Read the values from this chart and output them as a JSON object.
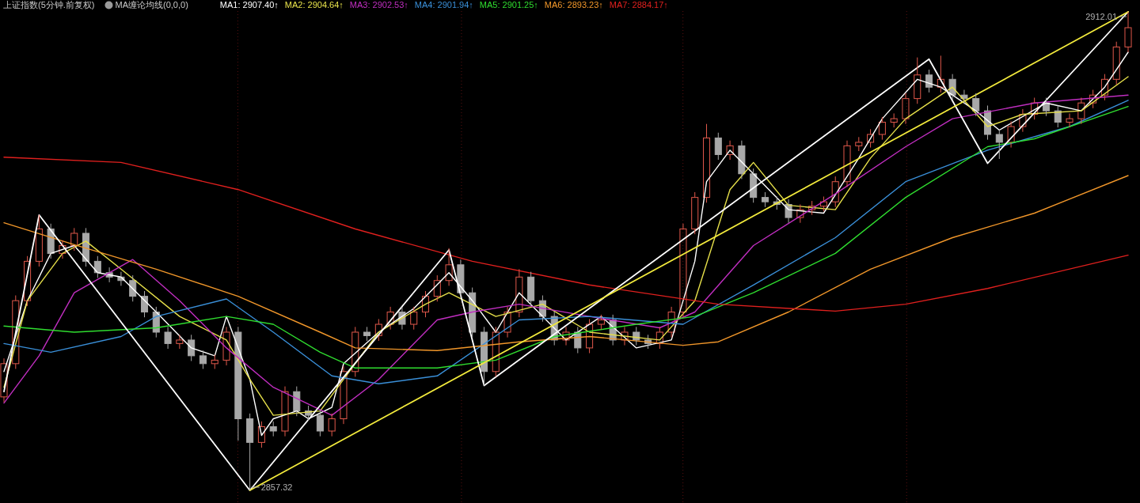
{
  "chart_data": {
    "type": "candlestick",
    "title": "上证指数(5分钟.前复权)",
    "subtitle": "MA缠论均线(0,0,0)",
    "tick_labels": false,
    "grid": "x",
    "categories": [
      null,
      null,
      null,
      null,
      null,
      null,
      null,
      null,
      null,
      null,
      null,
      null,
      null,
      null,
      null,
      null,
      null,
      null,
      null,
      null,
      null,
      null,
      null,
      null,
      null,
      null,
      null,
      null,
      null,
      null,
      null,
      null,
      null,
      null,
      null,
      null,
      null,
      null,
      null,
      null,
      null,
      null,
      null,
      null,
      null,
      null,
      null,
      null,
      null,
      null,
      null,
      null,
      null,
      null,
      null,
      null,
      null,
      null,
      null,
      null,
      null,
      null,
      null,
      null,
      null,
      null,
      null,
      null,
      null,
      null,
      null,
      null,
      null,
      null,
      null,
      null,
      null,
      null,
      null,
      null,
      null,
      null,
      null,
      null,
      null,
      null,
      null,
      null,
      null,
      null,
      null,
      null,
      null,
      null,
      null,
      null,
      null
    ],
    "colors": [
      "#e0584b",
      "#e0584b",
      "#e0584b",
      "#e0584b",
      "#a8a8a8",
      "#e0584b",
      "#e0584b",
      "#a8a8a8",
      "#a8a8a8",
      "#a8a8a8",
      "#a8a8a8",
      "#a8a8a8",
      "#a8a8a8",
      "#a8a8a8",
      "#a8a8a8",
      "#e0584b",
      "#a8a8a8",
      "#a8a8a8",
      "#e0584b",
      "#e0584b",
      "#a8a8a8",
      "#a8a8a8",
      "#e0584b",
      "#a8a8a8",
      "#e0584b",
      "#a8a8a8",
      "#a8a8a8",
      "#a8a8a8",
      "#e0584b",
      "#e0584b",
      "#e0584b",
      "#a8a8a8",
      "#e0584b",
      "#e0584b",
      "#a8a8a8",
      "#e0584b",
      "#e0584b",
      "#e0584b",
      "#e0584b",
      "#a8a8a8",
      "#a8a8a8",
      "#a8a8a8",
      "#e0584b",
      "#e0584b",
      "#e0584b",
      "#a8a8a8",
      "#a8a8a8",
      "#a8a8a8",
      "#e0584b",
      "#a8a8a8",
      "#e0584b",
      "#e0584b",
      "#a8a8a8",
      "#e0584b",
      "#a8a8a8",
      "#a8a8a8",
      "#e0584b",
      "#e0584b",
      "#e0584b",
      "#e0584b",
      "#e0584b",
      "#a8a8a8",
      "#e0584b",
      "#a8a8a8",
      "#a8a8a8",
      "#a8a8a8",
      "#a8a8a8",
      "#a8a8a8",
      "#e0584b",
      "#e0584b",
      "#e0584b",
      "#e0584b",
      "#e0584b",
      "#e0584b",
      "#e0584b",
      "#e0584b",
      "#e0584b",
      "#e0584b",
      "#e0584b",
      "#a8a8a8",
      "#e0584b",
      "#a8a8a8",
      "#a8a8a8",
      "#a8a8a8",
      "#a8a8a8",
      "#a8a8a8",
      "#e0584b",
      "#e0584b",
      "#e0584b",
      "#a8a8a8",
      "#a8a8a8",
      "#e0584b",
      "#e0584b",
      "#e0584b",
      "#e0584b",
      "#e0584b",
      "#e0584b"
    ],
    "ohlc": [
      [
        2868.0,
        2872.4,
        2867.4,
        2871.8
      ],
      [
        2871.8,
        2879.6,
        2871.2,
        2879.0
      ],
      [
        2879.0,
        2884.1,
        2878.4,
        2883.5
      ],
      [
        2883.5,
        2888.8,
        2882.9,
        2887.2
      ],
      [
        2887.2,
        2887.8,
        2883.8,
        2884.4
      ],
      [
        2884.4,
        2885.9,
        2883.8,
        2885.3
      ],
      [
        2885.3,
        2887.3,
        2884.7,
        2886.7
      ],
      [
        2886.7,
        2887.3,
        2882.9,
        2883.5
      ],
      [
        2883.5,
        2884.1,
        2881.6,
        2882.2
      ],
      [
        2882.2,
        2882.8,
        2881.1,
        2881.7
      ],
      [
        2881.7,
        2882.3,
        2880.7,
        2881.3
      ],
      [
        2881.3,
        2881.9,
        2878.9,
        2879.5
      ],
      [
        2879.5,
        2880.1,
        2877.1,
        2877.7
      ],
      [
        2877.7,
        2878.3,
        2874.8,
        2875.4
      ],
      [
        2875.4,
        2876.0,
        2873.5,
        2874.1
      ],
      [
        2874.1,
        2875.1,
        2873.5,
        2874.5
      ],
      [
        2874.5,
        2875.1,
        2872.1,
        2872.7
      ],
      [
        2872.7,
        2873.3,
        2871.2,
        2871.8
      ],
      [
        2871.8,
        2872.8,
        2871.2,
        2872.2
      ],
      [
        2872.2,
        2876.0,
        2871.6,
        2875.4
      ],
      [
        2875.4,
        2876.0,
        2863.0,
        2865.5
      ],
      [
        2865.5,
        2866.1,
        2857.32,
        2862.8
      ],
      [
        2862.8,
        2865.2,
        2862.2,
        2864.6
      ],
      [
        2864.6,
        2865.2,
        2863.5,
        2864.1
      ],
      [
        2864.1,
        2869.2,
        2863.5,
        2868.6
      ],
      [
        2868.6,
        2869.2,
        2865.8,
        2866.4
      ],
      [
        2866.4,
        2867.0,
        2865.3,
        2865.9
      ],
      [
        2865.9,
        2866.5,
        2863.5,
        2864.1
      ],
      [
        2864.1,
        2866.1,
        2863.5,
        2865.5
      ],
      [
        2865.5,
        2871.5,
        2864.9,
        2870.9
      ],
      [
        2870.9,
        2876.0,
        2870.3,
        2875.4
      ],
      [
        2875.4,
        2876.0,
        2874.4,
        2875.0
      ],
      [
        2875.0,
        2876.9,
        2874.4,
        2876.3
      ],
      [
        2876.3,
        2878.3,
        2875.7,
        2877.7
      ],
      [
        2877.7,
        2878.3,
        2875.7,
        2876.3
      ],
      [
        2876.3,
        2878.3,
        2875.7,
        2877.7
      ],
      [
        2877.7,
        2880.1,
        2877.1,
        2879.5
      ],
      [
        2879.5,
        2881.9,
        2878.9,
        2881.3
      ],
      [
        2881.3,
        2885.0,
        2880.7,
        2883.1
      ],
      [
        2883.1,
        2883.7,
        2879.3,
        2879.9
      ],
      [
        2879.9,
        2880.5,
        2874.8,
        2875.4
      ],
      [
        2875.4,
        2876.0,
        2869.3,
        2870.9
      ],
      [
        2870.9,
        2876.0,
        2870.3,
        2875.4
      ],
      [
        2875.4,
        2878.3,
        2874.8,
        2877.7
      ],
      [
        2877.7,
        2882.6,
        2877.1,
        2881.7
      ],
      [
        2881.7,
        2882.3,
        2878.4,
        2879.0
      ],
      [
        2879.0,
        2879.6,
        2876.6,
        2877.2
      ],
      [
        2877.2,
        2877.8,
        2873.9,
        2874.5
      ],
      [
        2874.5,
        2876.0,
        2873.9,
        2875.4
      ],
      [
        2875.4,
        2876.0,
        2873.0,
        2873.6
      ],
      [
        2873.6,
        2876.9,
        2873.0,
        2876.3
      ],
      [
        2876.3,
        2877.4,
        2875.7,
        2876.8
      ],
      [
        2876.8,
        2877.4,
        2873.9,
        2874.5
      ],
      [
        2874.5,
        2876.0,
        2873.9,
        2875.4
      ],
      [
        2875.4,
        2876.0,
        2873.9,
        2874.5
      ],
      [
        2874.5,
        2875.1,
        2873.5,
        2874.1
      ],
      [
        2874.1,
        2876.0,
        2873.5,
        2875.4
      ],
      [
        2875.4,
        2878.3,
        2874.8,
        2877.7
      ],
      [
        2877.7,
        2887.8,
        2877.1,
        2887.2
      ],
      [
        2887.2,
        2891.4,
        2886.6,
        2890.8
      ],
      [
        2890.8,
        2899.2,
        2890.2,
        2897.6
      ],
      [
        2897.6,
        2898.2,
        2895.1,
        2895.7
      ],
      [
        2895.7,
        2897.3,
        2895.1,
        2896.7
      ],
      [
        2896.7,
        2897.3,
        2892.9,
        2893.5
      ],
      [
        2893.5,
        2894.1,
        2890.2,
        2890.8
      ],
      [
        2890.8,
        2891.4,
        2889.7,
        2890.3
      ],
      [
        2890.3,
        2890.9,
        2889.4,
        2890.0
      ],
      [
        2890.0,
        2890.6,
        2887.9,
        2888.5
      ],
      [
        2888.5,
        2890.0,
        2887.9,
        2889.4
      ],
      [
        2889.4,
        2890.4,
        2888.8,
        2889.8
      ],
      [
        2889.8,
        2890.9,
        2889.2,
        2890.3
      ],
      [
        2890.3,
        2893.2,
        2889.7,
        2892.6
      ],
      [
        2892.6,
        2897.3,
        2892.0,
        2896.7
      ],
      [
        2896.7,
        2897.7,
        2896.1,
        2897.1
      ],
      [
        2897.1,
        2898.6,
        2896.5,
        2898.0
      ],
      [
        2898.0,
        2900.0,
        2897.4,
        2899.4
      ],
      [
        2899.4,
        2900.4,
        2898.8,
        2899.8
      ],
      [
        2899.8,
        2902.7,
        2899.2,
        2902.1
      ],
      [
        2902.1,
        2906.8,
        2901.5,
        2904.8
      ],
      [
        2904.8,
        2905.4,
        2902.8,
        2903.4
      ],
      [
        2903.4,
        2907.0,
        2902.8,
        2904.3
      ],
      [
        2904.3,
        2904.9,
        2901.9,
        2902.5
      ],
      [
        2902.5,
        2903.1,
        2901.5,
        2902.1
      ],
      [
        2902.1,
        2902.7,
        2900.1,
        2900.7
      ],
      [
        2900.7,
        2901.3,
        2897.4,
        2898.0
      ],
      [
        2898.0,
        2898.6,
        2895.2,
        2897.1
      ],
      [
        2897.1,
        2899.5,
        2896.5,
        2898.9
      ],
      [
        2898.9,
        2900.9,
        2898.3,
        2900.3
      ],
      [
        2900.3,
        2902.2,
        2899.7,
        2901.6
      ],
      [
        2901.6,
        2902.2,
        2900.1,
        2900.7
      ],
      [
        2900.7,
        2901.3,
        2898.8,
        2899.4
      ],
      [
        2899.4,
        2900.4,
        2898.8,
        2899.8
      ],
      [
        2899.8,
        2902.2,
        2899.2,
        2901.6
      ],
      [
        2901.6,
        2903.1,
        2901.0,
        2902.5
      ],
      [
        2902.5,
        2904.9,
        2901.9,
        2904.3
      ],
      [
        2904.3,
        2908.6,
        2903.7,
        2908.0
      ],
      [
        2908.0,
        2912.01,
        2907.4,
        2910.2
      ]
    ],
    "series": [
      {
        "type": "line",
        "name": "MA1: 2907.40↑",
        "color": "#ffffff",
        "values": [
          2870.9,
          null,
          2879.0,
          null,
          2884.4,
          null,
          2885.3,
          null,
          2882.2,
          null,
          2881.7,
          null,
          null,
          2877.7,
          null,
          null,
          2873.6,
          null,
          2872.7,
          2877.2,
          null,
          2870.0,
          2863.6,
          2865.5,
          null,
          2866.4,
          2865.5,
          null,
          2866.8,
          2871.8,
          null,
          null,
          2875.4,
          null,
          null,
          2878.1,
          null,
          null,
          2882.2,
          null,
          2879.0,
          null,
          2875.4,
          null,
          2879.9,
          null,
          2877.2,
          null,
          2874.5,
          null,
          null,
          2877.2,
          null,
          null,
          2873.6,
          null,
          null,
          2874.5,
          null,
          2883.5,
          2892.6,
          null,
          2896.2,
          null,
          2893.5,
          null,
          null,
          2889.4,
          null,
          null,
          2889.0,
          null,
          null,
          2895.3,
          null,
          2899.8,
          null,
          null,
          2904.3,
          null,
          2903.4,
          null,
          null,
          2900.7,
          null,
          2898.5,
          null,
          null,
          null,
          2901.6,
          null,
          null,
          2900.7,
          null,
          2903.4,
          null,
          2907.4
        ]
      },
      {
        "type": "line",
        "name": "MA2: 2904.64↑",
        "color": "#e6e04a",
        "values": [
          2869.1,
          null,
          2879.0,
          null,
          null,
          2884.4,
          null,
          2885.8,
          null,
          null,
          2882.6,
          null,
          null,
          null,
          null,
          2877.2,
          null,
          null,
          null,
          2874.5,
          null,
          2870.0,
          null,
          2865.9,
          null,
          null,
          null,
          2866.4,
          null,
          2870.0,
          null,
          null,
          2875.4,
          null,
          null,
          null,
          2878.6,
          null,
          2879.9,
          null,
          null,
          null,
          2877.2,
          null,
          null,
          null,
          2878.6,
          null,
          null,
          null,
          2875.4,
          null,
          null,
          null,
          null,
          null,
          2874.5,
          null,
          null,
          2879.0,
          null,
          null,
          2891.7,
          null,
          2894.8,
          null,
          null,
          2889.9,
          null,
          null,
          null,
          2889.4,
          null,
          null,
          2895.3,
          null,
          null,
          2899.8,
          null,
          null,
          null,
          2903.4,
          null,
          null,
          2898.9,
          null,
          null,
          2900.3,
          null,
          null,
          null,
          null,
          2900.7,
          null,
          null,
          null,
          2904.6
        ]
      },
      {
        "type": "line",
        "name": "MA3: 2902.53↑",
        "color": "#c02ec0",
        "values": [
          2867.3,
          null,
          null,
          2872.7,
          null,
          null,
          2879.9,
          null,
          null,
          null,
          null,
          2883.7,
          null,
          null,
          null,
          2879.0,
          null,
          null,
          null,
          2873.6,
          null,
          null,
          null,
          2869.1,
          null,
          null,
          null,
          null,
          2865.9,
          null,
          null,
          null,
          2870.0,
          null,
          null,
          null,
          null,
          2876.8,
          null,
          null,
          2877.7,
          null,
          null,
          null,
          2878.6,
          null,
          null,
          null,
          null,
          null,
          2877.2,
          null,
          null,
          null,
          null,
          null,
          2875.9,
          null,
          null,
          2877.7,
          null,
          null,
          null,
          null,
          2885.3,
          null,
          null,
          null,
          null,
          null,
          null,
          2891.2,
          null,
          null,
          null,
          null,
          null,
          2896.6,
          null,
          null,
          null,
          2899.8,
          null,
          null,
          null,
          null,
          null,
          null,
          2901.6,
          null,
          null,
          null,
          null,
          null,
          null,
          null,
          2902.5
        ]
      },
      {
        "type": "line",
        "name": "MA4: 2901.94↑",
        "color": "#3a8fd8",
        "values": [
          2874.1,
          null,
          null,
          null,
          2873.1,
          null,
          null,
          null,
          null,
          null,
          2874.9,
          null,
          null,
          2877.2,
          null,
          null,
          null,
          null,
          null,
          2879.2,
          null,
          null,
          null,
          2875.4,
          null,
          null,
          null,
          null,
          2870.4,
          null,
          null,
          null,
          2869.5,
          null,
          null,
          null,
          null,
          2870.4,
          null,
          null,
          null,
          null,
          null,
          null,
          2876.8,
          null,
          null,
          null,
          null,
          null,
          2877.2,
          null,
          null,
          null,
          null,
          null,
          null,
          null,
          2876.3,
          null,
          null,
          null,
          null,
          null,
          2880.8,
          null,
          null,
          null,
          null,
          null,
          null,
          2886.2,
          null,
          null,
          null,
          null,
          null,
          2892.6,
          null,
          null,
          null,
          null,
          null,
          null,
          2896.2,
          null,
          null,
          null,
          null,
          null,
          null,
          2898.9,
          null,
          null,
          null,
          null,
          2901.9
        ]
      },
      {
        "type": "line",
        "name": "MA5: 2901.25↑",
        "color": "#2fdc2f",
        "values": [
          2876.1,
          null,
          null,
          null,
          null,
          null,
          2875.4,
          null,
          null,
          null,
          null,
          null,
          null,
          2875.9,
          null,
          null,
          null,
          null,
          null,
          2877.2,
          null,
          null,
          null,
          2876.3,
          null,
          null,
          null,
          2873.1,
          null,
          null,
          2871.3,
          null,
          null,
          null,
          null,
          null,
          null,
          2871.3,
          null,
          null,
          null,
          null,
          2872.2,
          null,
          null,
          null,
          null,
          2874.9,
          null,
          null,
          null,
          null,
          null,
          null,
          2876.3,
          null,
          null,
          null,
          null,
          2877.2,
          null,
          null,
          null,
          null,
          2879.9,
          null,
          null,
          null,
          null,
          null,
          null,
          2884.4,
          null,
          null,
          null,
          null,
          null,
          2890.8,
          null,
          null,
          null,
          null,
          null,
          null,
          2896.6,
          null,
          null,
          null,
          2897.5,
          null,
          null,
          null,
          null,
          null,
          null,
          null,
          2901.2
        ]
      },
      {
        "type": "line",
        "name": "MA6: 2893.23↑",
        "color": "#f0962a",
        "values": [
          2887.9,
          null,
          null,
          null,
          null,
          null,
          2885.4,
          null,
          null,
          null,
          null,
          null,
          null,
          2882.6,
          null,
          null,
          null,
          null,
          null,
          null,
          2879.5,
          null,
          null,
          null,
          null,
          null,
          null,
          2875.4,
          null,
          null,
          2873.6,
          null,
          null,
          null,
          null,
          null,
          null,
          2873.3,
          null,
          null,
          null,
          null,
          null,
          null,
          2874.3,
          null,
          null,
          null,
          null,
          null,
          2874.9,
          null,
          null,
          null,
          null,
          null,
          null,
          null,
          2873.9,
          null,
          null,
          2874.3,
          null,
          null,
          null,
          null,
          null,
          2877.7,
          null,
          null,
          null,
          null,
          null,
          null,
          2882.6,
          null,
          null,
          null,
          null,
          null,
          null,
          2886.2,
          null,
          null,
          null,
          null,
          null,
          null,
          2889.0,
          null,
          null,
          null,
          null,
          null,
          null,
          null,
          2893.3
        ]
      },
      {
        "type": "line",
        "name": "MA7: 2884.17↑",
        "color": "#e0201e",
        "values": [
          2895.4,
          null,
          null,
          null,
          null,
          null,
          null,
          null,
          null,
          null,
          2894.8,
          null,
          null,
          null,
          null,
          null,
          null,
          null,
          null,
          null,
          2891.7,
          null,
          null,
          null,
          null,
          null,
          null,
          null,
          null,
          null,
          2887.2,
          null,
          null,
          null,
          null,
          null,
          null,
          null,
          null,
          null,
          2883.5,
          null,
          null,
          null,
          null,
          null,
          null,
          null,
          null,
          null,
          2880.8,
          null,
          null,
          null,
          null,
          null,
          null,
          null,
          null,
          null,
          null,
          2878.6,
          null,
          null,
          null,
          null,
          null,
          null,
          null,
          null,
          null,
          2877.8,
          null,
          null,
          null,
          null,
          null,
          2878.6,
          null,
          null,
          null,
          null,
          null,
          null,
          2880.4,
          null,
          null,
          null,
          null,
          null,
          null,
          null,
          null,
          null,
          null,
          null,
          2884.2
        ]
      },
      {
        "type": "line",
        "color": "#ffffff",
        "values": [
          2868.6,
          null,
          null,
          2888.8,
          null,
          null,
          null,
          null,
          null,
          null,
          null,
          null,
          null,
          null,
          null,
          null,
          null,
          null,
          null,
          null,
          null,
          2857.32,
          null,
          null,
          null,
          null,
          null,
          null,
          null,
          null,
          null,
          null,
          null,
          null,
          null,
          null,
          null,
          null,
          2884.8,
          null,
          null,
          2869.3,
          null,
          null,
          null,
          null,
          null,
          null,
          null,
          null,
          null,
          null,
          null,
          null,
          null,
          null,
          null,
          null,
          null,
          null,
          null,
          null,
          null,
          null,
          null,
          null,
          null,
          null,
          null,
          null,
          null,
          null,
          null,
          null,
          null,
          null,
          null,
          null,
          null,
          2906.6,
          null,
          null,
          null,
          null,
          2894.7,
          null,
          null,
          null,
          null,
          null,
          null,
          null,
          null,
          null,
          null,
          null,
          2912.01
        ]
      },
      {
        "type": "line",
        "color": "#f2ea3c",
        "values": [
          null,
          null,
          null,
          null,
          null,
          null,
          null,
          null,
          null,
          null,
          null,
          null,
          null,
          null,
          null,
          null,
          null,
          null,
          null,
          null,
          null,
          2857.32,
          null,
          null,
          null,
          null,
          null,
          null,
          null,
          null,
          null,
          null,
          null,
          null,
          null,
          null,
          null,
          null,
          null,
          null,
          null,
          null,
          null,
          null,
          null,
          null,
          null,
          null,
          null,
          null,
          null,
          null,
          null,
          null,
          null,
          null,
          null,
          null,
          null,
          null,
          null,
          null,
          null,
          null,
          null,
          null,
          null,
          null,
          null,
          null,
          null,
          null,
          null,
          null,
          null,
          null,
          null,
          null,
          null,
          null,
          null,
          null,
          null,
          null,
          null,
          null,
          null,
          null,
          null,
          null,
          null,
          null,
          null,
          null,
          null,
          null,
          2912.01
        ]
      }
    ],
    "annotations": [
      "2912.01",
      "2857.32"
    ]
  }
}
